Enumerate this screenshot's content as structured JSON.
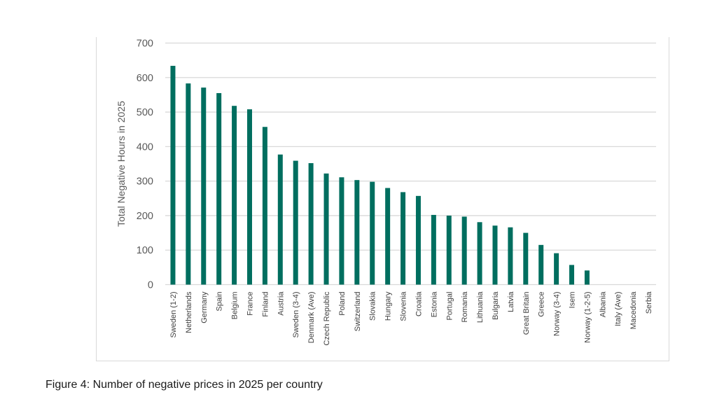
{
  "caption": "Figure 4: Number of negative prices in 2025 per country",
  "chart_data": {
    "type": "bar",
    "title": "",
    "xlabel": "",
    "ylabel": "Total Negative Hours in 2025",
    "ylim": [
      0,
      700
    ],
    "yticks": [
      0,
      100,
      200,
      300,
      400,
      500,
      600,
      700
    ],
    "grid": true,
    "legend": "none",
    "bar_color": "#006e5f",
    "categories": [
      "Sweden (1-2)",
      "Netherlands",
      "Germany",
      "Spain",
      "Belgium",
      "France",
      "Finland",
      "Austria",
      "Sweden (3-4)",
      "Denmark (Ave)",
      "Czech Republic",
      "Poland",
      "Switzerland",
      "Slovakia",
      "Hungary",
      "Slovenia",
      "Croatia",
      "Estonia",
      "Portugal",
      "Romania",
      "Lithuania",
      "Bulgaria",
      "Latvia",
      "Great Britain",
      "Greece",
      "Norway (3-4)",
      "Isem",
      "Norway (1-2-5)",
      "Albania",
      "Italy (Ave)",
      "Macedonia",
      "Serbia"
    ],
    "values": [
      634,
      583,
      571,
      555,
      518,
      508,
      457,
      377,
      359,
      352,
      322,
      311,
      303,
      298,
      280,
      268,
      257,
      202,
      200,
      197,
      181,
      171,
      166,
      150,
      115,
      91,
      57,
      41,
      0,
      0,
      0,
      0
    ]
  }
}
